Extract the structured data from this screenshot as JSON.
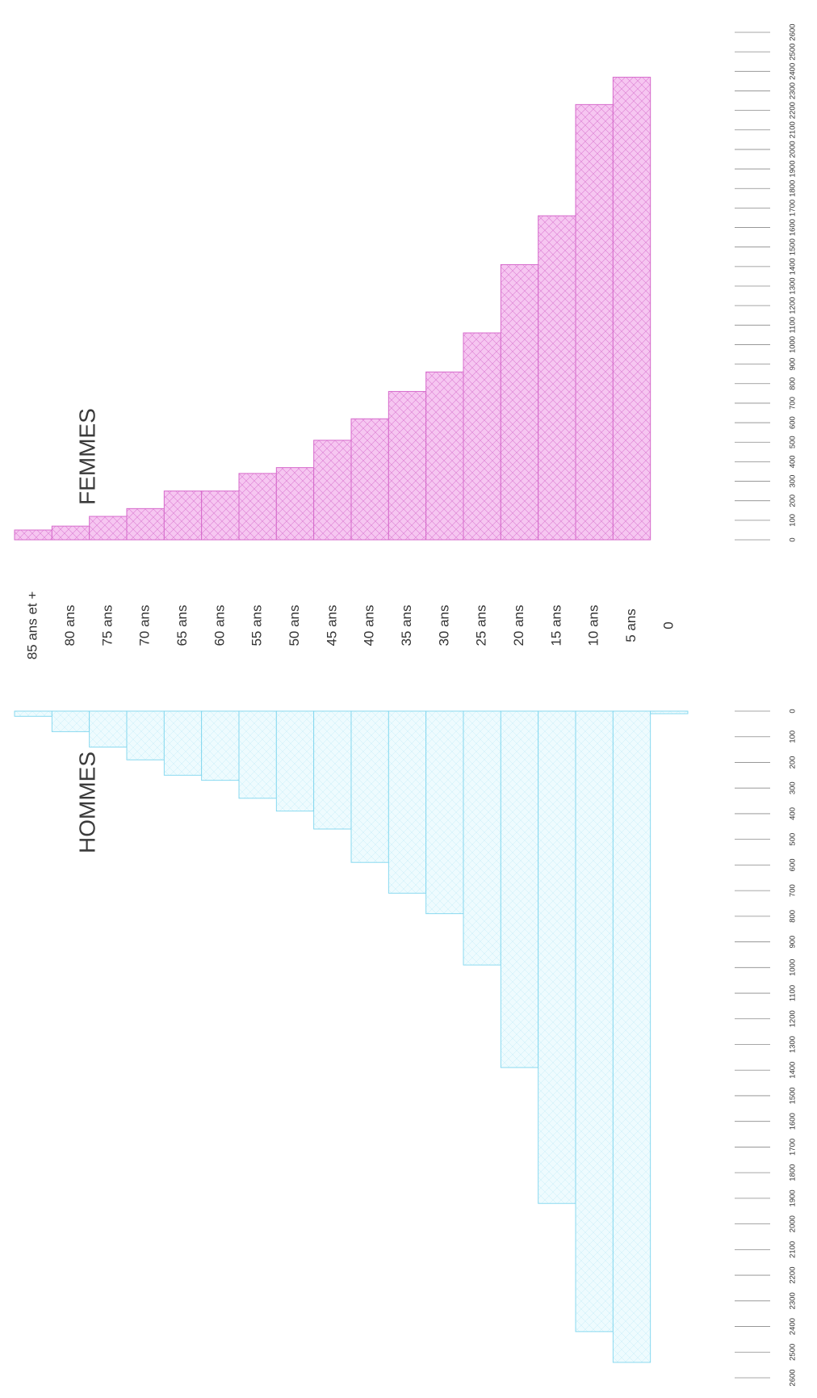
{
  "chart_data": {
    "type": "bar",
    "orientation": "population-pyramid",
    "title": "",
    "categories": [
      "85 ans et +",
      "80 ans",
      "75 ans",
      "70 ans",
      "65 ans",
      "60 ans",
      "55 ans",
      "50 ans",
      "45 ans",
      "40 ans",
      "35 ans",
      "30 ans",
      "25 ans",
      "20 ans",
      "15 ans",
      "10 ans",
      "5 ans",
      "0"
    ],
    "series": [
      {
        "name": "HOMMES",
        "color": "#5bc8e6",
        "values": [
          20,
          80,
          140,
          190,
          250,
          270,
          340,
          390,
          460,
          590,
          710,
          790,
          990,
          1390,
          1920,
          2420,
          2540,
          10
        ]
      },
      {
        "name": "FEMMES",
        "color": "#e07ad8",
        "values": [
          50,
          70,
          120,
          160,
          250,
          250,
          340,
          370,
          510,
          620,
          760,
          860,
          1060,
          1410,
          1660,
          2230,
          2370,
          0
        ]
      }
    ],
    "ticks": [
      "0",
      "100",
      "200",
      "300",
      "400",
      "500",
      "600",
      "700",
      "800",
      "900",
      "1000",
      "1100",
      "1200",
      "1300",
      "1400",
      "1500",
      "1600",
      "1700",
      "1800",
      "1900",
      "2000",
      "2100",
      "2200",
      "2300",
      "2400",
      "2500",
      "2600"
    ],
    "xlim": [
      0,
      2600
    ],
    "grid": false,
    "legend": "none"
  }
}
